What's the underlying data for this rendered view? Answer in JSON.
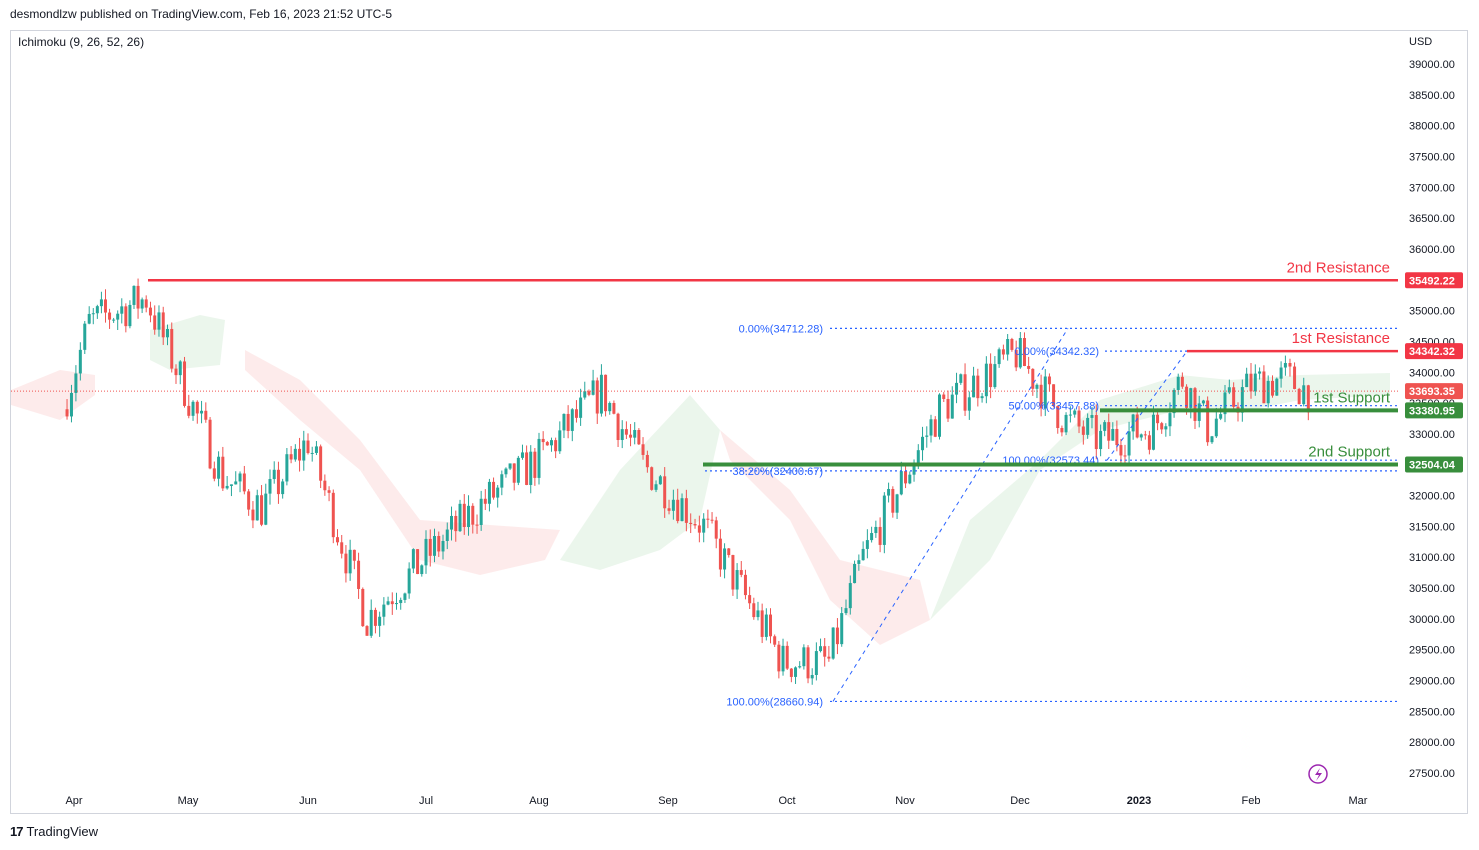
{
  "header": {
    "published": "desmondlzw published on TradingView.com, Feb 16, 2023 21:52 UTC-5"
  },
  "indicator": {
    "label": "Ichimoku (9, 26, 52, 26)"
  },
  "footer": {
    "brand": "TradingView",
    "logo": "17"
  },
  "icons": {
    "lightning": "lightning-icon",
    "logo": "tradingview-logo-icon"
  },
  "colors": {
    "up": "#26a69a",
    "down": "#ef5350",
    "resistance": "#f23645",
    "support": "#388e3c",
    "fib": "#2962ff",
    "cloud_bull": "#e8f5e9",
    "cloud_bear": "#fde8e8"
  },
  "chart_data": {
    "type": "candlestick",
    "currency": "USD",
    "y_ticks": [
      "39000.00",
      "38500.00",
      "38000.00",
      "37500.00",
      "37000.00",
      "36500.00",
      "36000.00",
      "35500.00",
      "35000.00",
      "34500.00",
      "34000.00",
      "33500.00",
      "33000.00",
      "32500.00",
      "32000.00",
      "31500.00",
      "31000.00",
      "30500.00",
      "30000.00",
      "29500.00",
      "29000.00",
      "28500.00",
      "28000.00",
      "27500.00"
    ],
    "x_ticks": [
      "Apr",
      "May",
      "Jun",
      "Jul",
      "Aug",
      "Sep",
      "Oct",
      "Nov",
      "Dec",
      "2023",
      "Feb",
      "Mar"
    ],
    "ylim": [
      27200,
      39300
    ],
    "last_price": 33693.35,
    "levels": [
      {
        "name": "2nd Resistance",
        "value": 35492.22,
        "label": "35492.22",
        "kind": "resistance"
      },
      {
        "name": "1st Resistance",
        "value": 34342.32,
        "label": "34342.32",
        "kind": "resistance"
      },
      {
        "name": "1st Support",
        "value": 33380.95,
        "label": "33380.95",
        "kind": "support"
      },
      {
        "name": "2nd Support",
        "value": 32504.04,
        "label": "32504.04",
        "kind": "support"
      }
    ],
    "last_price_label": "33693.35",
    "fib_labels": [
      {
        "text": "0.00%(34712.28)",
        "value": 34712.28
      },
      {
        "text": "38.20%(32400.67)",
        "value": 32400.67
      },
      {
        "text": "100.00%(28660.94)",
        "value": 28660.94
      },
      {
        "text": "0.00%(34342.32)",
        "value": 34342.32
      },
      {
        "text": "50.00%(33457.88)",
        "value": 33457.88
      },
      {
        "text": "100.00%(32573.44)",
        "value": 32573.44
      }
    ],
    "series": [
      {
        "x": [
          "Mar 28",
          "Apr 5",
          "Apr 20",
          "May 10",
          "May 20",
          "Jun 1",
          "Jun 16",
          "Jul 1",
          "Jul 15",
          "Aug 1",
          "Aug 16",
          "Aug 26",
          "Sep 10",
          "Sep 30",
          "Oct 12",
          "Oct 21",
          "Nov 10",
          "Nov 30",
          "Dec 13",
          "Dec 22",
          "Jan 5",
          "Jan 13",
          "Jan 20",
          "Feb 1",
          "Feb 10",
          "Feb 16"
        ],
        "close": [
          33400,
          34800,
          35200,
          32300,
          31800,
          32900,
          30000,
          31000,
          31800,
          32600,
          33700,
          32500,
          31500,
          29300,
          29300,
          31000,
          33400,
          34300,
          33200,
          32900,
          33100,
          33900,
          33100,
          33800,
          33900,
          33693
        ]
      }
    ]
  }
}
